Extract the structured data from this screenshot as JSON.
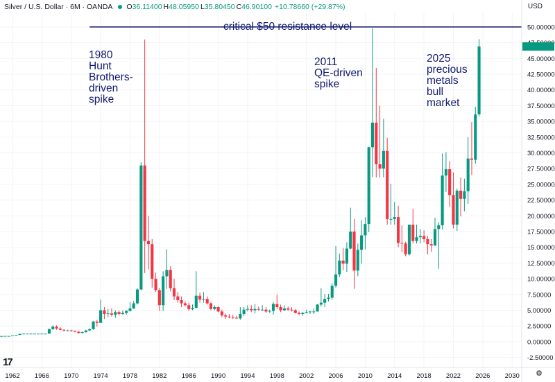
{
  "header": {
    "symbol": "Silver / U.S. Dollar · 6M · OANDA",
    "o_label": "O",
    "o_value": "36.11400",
    "h_label": "H",
    "h_value": "48.05950",
    "l_label": "L",
    "l_value": "35.80450",
    "c_label": "C",
    "c_value": "46.90100",
    "change": "+10.78660 (+29.87%)",
    "currency": "USD",
    "logo": "17"
  },
  "colors": {
    "up": "#089981",
    "down": "#f23645",
    "annotation": "#10186e"
  },
  "chart_data": {
    "type": "candlestick",
    "y_ticks": [
      "-2.50000",
      "0.00000",
      "2.50000",
      "5.00000",
      "7.50000",
      "10.00000",
      "12.50000",
      "15.00000",
      "17.50000",
      "20.00000",
      "22.50000",
      "25.00000",
      "27.50000",
      "30.00000",
      "32.50000",
      "35.00000",
      "37.50000",
      "40.00000",
      "42.50000",
      "45.00000",
      "47.50000",
      "50.00000"
    ],
    "x_ticks": [
      "1962",
      "1966",
      "1970",
      "1974",
      "1978",
      "1982",
      "1986",
      "1990",
      "1994",
      "1998",
      "2002",
      "2006",
      "2010",
      "2014",
      "2018",
      "2022",
      "2026",
      "2030"
    ],
    "ylim": [
      -3.2,
      52.3
    ],
    "xlim": [
      1960.3,
      2031.3
    ],
    "resistance": {
      "value": 50.0,
      "label": "critical $50 resistance level",
      "x_start": 1972.5
    },
    "annotations": [
      {
        "text": "1980\nHunt\nBrothers-\ndriven\nspike"
      },
      {
        "text": "2011\nQE-driven\nspike"
      },
      {
        "text": "2025\nprecious\nmetals\nbull\nmarket"
      }
    ],
    "candles": [
      {
        "t": 1960.5,
        "o": 0.91,
        "h": 0.91,
        "l": 0.91,
        "c": 0.91
      },
      {
        "t": 1961,
        "o": 0.91,
        "h": 0.92,
        "l": 0.91,
        "c": 0.92
      },
      {
        "t": 1961.5,
        "o": 0.92,
        "h": 0.92,
        "l": 0.92,
        "c": 0.92
      },
      {
        "t": 1962,
        "o": 0.92,
        "h": 1.0,
        "l": 0.92,
        "c": 1.0
      },
      {
        "t": 1962.5,
        "o": 1.0,
        "h": 1.08,
        "l": 1.0,
        "c": 1.08
      },
      {
        "t": 1963,
        "o": 1.08,
        "h": 1.25,
        "l": 1.07,
        "c": 1.25
      },
      {
        "t": 1963.5,
        "o": 1.25,
        "h": 1.29,
        "l": 1.25,
        "c": 1.29
      },
      {
        "t": 1964,
        "o": 1.29,
        "h": 1.29,
        "l": 1.29,
        "c": 1.29
      },
      {
        "t": 1964.5,
        "o": 1.29,
        "h": 1.29,
        "l": 1.29,
        "c": 1.29
      },
      {
        "t": 1965,
        "o": 1.29,
        "h": 1.29,
        "l": 1.29,
        "c": 1.29
      },
      {
        "t": 1965.5,
        "o": 1.29,
        "h": 1.29,
        "l": 1.29,
        "c": 1.29
      },
      {
        "t": 1966,
        "o": 1.29,
        "h": 1.29,
        "l": 1.29,
        "c": 1.29
      },
      {
        "t": 1966.5,
        "o": 1.29,
        "h": 1.29,
        "l": 1.29,
        "c": 1.29
      },
      {
        "t": 1967,
        "o": 1.29,
        "h": 2.1,
        "l": 1.29,
        "c": 2.0
      },
      {
        "t": 1967.5,
        "o": 2.0,
        "h": 2.6,
        "l": 1.9,
        "c": 2.4
      },
      {
        "t": 1968,
        "o": 2.4,
        "h": 2.6,
        "l": 1.9,
        "c": 2.1
      },
      {
        "t": 1968.5,
        "o": 2.1,
        "h": 2.3,
        "l": 1.8,
        "c": 1.9
      },
      {
        "t": 1969,
        "o": 1.9,
        "h": 2.0,
        "l": 1.6,
        "c": 1.8
      },
      {
        "t": 1969.5,
        "o": 1.8,
        "h": 1.9,
        "l": 1.7,
        "c": 1.8
      },
      {
        "t": 1970,
        "o": 1.8,
        "h": 1.9,
        "l": 1.6,
        "c": 1.7
      },
      {
        "t": 1970.5,
        "o": 1.7,
        "h": 1.8,
        "l": 1.5,
        "c": 1.6
      },
      {
        "t": 1971,
        "o": 1.6,
        "h": 1.7,
        "l": 1.3,
        "c": 1.4
      },
      {
        "t": 1971.5,
        "o": 1.4,
        "h": 1.6,
        "l": 1.3,
        "c": 1.55
      },
      {
        "t": 1972,
        "o": 1.55,
        "h": 1.9,
        "l": 1.4,
        "c": 1.8
      },
      {
        "t": 1972.5,
        "o": 1.8,
        "h": 2.1,
        "l": 1.7,
        "c": 2.0
      },
      {
        "t": 1973,
        "o": 2.0,
        "h": 3.3,
        "l": 1.9,
        "c": 3.2
      },
      {
        "t": 1973.5,
        "o": 3.2,
        "h": 3.5,
        "l": 2.4,
        "c": 3.0
      },
      {
        "t": 1974,
        "o": 3.0,
        "h": 6.7,
        "l": 3.0,
        "c": 5.0
      },
      {
        "t": 1974.5,
        "o": 5.0,
        "h": 5.5,
        "l": 3.6,
        "c": 4.4
      },
      {
        "t": 1975,
        "o": 4.4,
        "h": 5.2,
        "l": 3.9,
        "c": 4.5
      },
      {
        "t": 1975.5,
        "o": 4.5,
        "h": 5.3,
        "l": 4.0,
        "c": 4.3
      },
      {
        "t": 1976,
        "o": 4.3,
        "h": 5.0,
        "l": 3.8,
        "c": 4.7
      },
      {
        "t": 1976.5,
        "o": 4.7,
        "h": 5.0,
        "l": 4.2,
        "c": 4.4
      },
      {
        "t": 1977,
        "o": 4.4,
        "h": 5.0,
        "l": 4.3,
        "c": 4.6
      },
      {
        "t": 1977.5,
        "o": 4.6,
        "h": 5.0,
        "l": 4.3,
        "c": 4.9
      },
      {
        "t": 1978,
        "o": 4.9,
        "h": 6.3,
        "l": 4.8,
        "c": 5.3
      },
      {
        "t": 1978.5,
        "o": 5.3,
        "h": 6.5,
        "l": 5.2,
        "c": 6.1
      },
      {
        "t": 1979,
        "o": 6.1,
        "h": 8.5,
        "l": 5.9,
        "c": 8.3
      },
      {
        "t": 1979.5,
        "o": 8.3,
        "h": 28.5,
        "l": 8.2,
        "c": 28.0
      },
      {
        "t": 1980,
        "o": 28.0,
        "h": 48.0,
        "l": 10.9,
        "c": 16.0
      },
      {
        "t": 1980.5,
        "o": 16.0,
        "h": 20.0,
        "l": 11.5,
        "c": 15.5
      },
      {
        "t": 1981,
        "o": 15.5,
        "h": 16.3,
        "l": 8.6,
        "c": 10.0
      },
      {
        "t": 1981.5,
        "o": 10.0,
        "h": 11.0,
        "l": 7.9,
        "c": 8.2
      },
      {
        "t": 1982,
        "o": 8.2,
        "h": 8.5,
        "l": 4.9,
        "c": 5.8
      },
      {
        "t": 1982.5,
        "o": 5.8,
        "h": 11.2,
        "l": 4.9,
        "c": 10.4
      },
      {
        "t": 1983,
        "o": 10.4,
        "h": 14.7,
        "l": 8.4,
        "c": 11.4
      },
      {
        "t": 1983.5,
        "o": 11.4,
        "h": 12.0,
        "l": 8.0,
        "c": 8.5
      },
      {
        "t": 1984,
        "o": 8.5,
        "h": 10.0,
        "l": 6.6,
        "c": 7.2
      },
      {
        "t": 1984.5,
        "o": 7.2,
        "h": 7.9,
        "l": 6.2,
        "c": 6.6
      },
      {
        "t": 1985,
        "o": 6.6,
        "h": 7.2,
        "l": 5.5,
        "c": 6.1
      },
      {
        "t": 1985.5,
        "o": 6.1,
        "h": 6.4,
        "l": 5.6,
        "c": 5.8
      },
      {
        "t": 1986,
        "o": 5.8,
        "h": 6.2,
        "l": 4.9,
        "c": 5.2
      },
      {
        "t": 1986.5,
        "o": 5.2,
        "h": 5.9,
        "l": 5.0,
        "c": 5.4
      },
      {
        "t": 1987,
        "o": 5.4,
        "h": 11.2,
        "l": 5.3,
        "c": 7.3
      },
      {
        "t": 1987.5,
        "o": 7.3,
        "h": 7.8,
        "l": 6.2,
        "c": 6.7
      },
      {
        "t": 1988,
        "o": 6.7,
        "h": 7.9,
        "l": 6.2,
        "c": 6.8
      },
      {
        "t": 1988.5,
        "o": 6.8,
        "h": 7.2,
        "l": 5.9,
        "c": 6.1
      },
      {
        "t": 1989,
        "o": 6.1,
        "h": 6.3,
        "l": 5.0,
        "c": 5.2
      },
      {
        "t": 1989.5,
        "o": 5.2,
        "h": 5.8,
        "l": 5.0,
        "c": 5.5
      },
      {
        "t": 1990,
        "o": 5.5,
        "h": 5.6,
        "l": 4.7,
        "c": 4.8
      },
      {
        "t": 1990.5,
        "o": 4.8,
        "h": 5.1,
        "l": 3.9,
        "c": 4.2
      },
      {
        "t": 1991,
        "o": 4.2,
        "h": 4.5,
        "l": 3.6,
        "c": 4.0
      },
      {
        "t": 1991.5,
        "o": 4.0,
        "h": 4.4,
        "l": 3.7,
        "c": 3.9
      },
      {
        "t": 1992,
        "o": 3.9,
        "h": 4.3,
        "l": 3.6,
        "c": 3.8
      },
      {
        "t": 1992.5,
        "o": 3.8,
        "h": 4.1,
        "l": 3.6,
        "c": 3.7
      },
      {
        "t": 1993,
        "o": 3.7,
        "h": 5.5,
        "l": 3.5,
        "c": 4.4
      },
      {
        "t": 1993.5,
        "o": 4.4,
        "h": 5.5,
        "l": 4.1,
        "c": 5.1
      },
      {
        "t": 1994,
        "o": 5.1,
        "h": 5.8,
        "l": 4.8,
        "c": 5.2
      },
      {
        "t": 1994.5,
        "o": 5.2,
        "h": 5.8,
        "l": 4.7,
        "c": 5.0
      },
      {
        "t": 1995,
        "o": 5.0,
        "h": 6.0,
        "l": 4.5,
        "c": 5.2
      },
      {
        "t": 1995.5,
        "o": 5.2,
        "h": 5.6,
        "l": 4.9,
        "c": 5.1
      },
      {
        "t": 1996,
        "o": 5.1,
        "h": 5.8,
        "l": 4.9,
        "c": 5.1
      },
      {
        "t": 1996.5,
        "o": 5.1,
        "h": 5.5,
        "l": 4.6,
        "c": 4.8
      },
      {
        "t": 1997,
        "o": 4.8,
        "h": 5.1,
        "l": 4.6,
        "c": 4.9
      },
      {
        "t": 1997.5,
        "o": 4.9,
        "h": 6.3,
        "l": 4.3,
        "c": 6.0
      },
      {
        "t": 1998,
        "o": 6.0,
        "h": 7.5,
        "l": 5.2,
        "c": 5.5
      },
      {
        "t": 1998.5,
        "o": 5.5,
        "h": 5.9,
        "l": 4.7,
        "c": 5.0
      },
      {
        "t": 1999,
        "o": 5.0,
        "h": 5.8,
        "l": 4.9,
        "c": 5.3
      },
      {
        "t": 1999.5,
        "o": 5.3,
        "h": 5.6,
        "l": 4.9,
        "c": 5.1
      },
      {
        "t": 2000,
        "o": 5.1,
        "h": 5.5,
        "l": 4.8,
        "c": 5.0
      },
      {
        "t": 2000.5,
        "o": 5.0,
        "h": 5.2,
        "l": 4.5,
        "c": 4.6
      },
      {
        "t": 2001,
        "o": 4.6,
        "h": 4.8,
        "l": 4.2,
        "c": 4.4
      },
      {
        "t": 2001.5,
        "o": 4.4,
        "h": 4.7,
        "l": 4.1,
        "c": 4.6
      },
      {
        "t": 2002,
        "o": 4.6,
        "h": 5.1,
        "l": 4.5,
        "c": 4.7
      },
      {
        "t": 2002.5,
        "o": 4.7,
        "h": 4.9,
        "l": 4.4,
        "c": 4.8
      },
      {
        "t": 2003,
        "o": 4.8,
        "h": 5.3,
        "l": 4.4,
        "c": 4.8
      },
      {
        "t": 2003.5,
        "o": 4.8,
        "h": 6.0,
        "l": 4.8,
        "c": 5.9
      },
      {
        "t": 2004,
        "o": 5.9,
        "h": 8.5,
        "l": 5.6,
        "c": 6.2
      },
      {
        "t": 2004.5,
        "o": 6.2,
        "h": 7.6,
        "l": 5.5,
        "c": 6.8
      },
      {
        "t": 2005,
        "o": 6.8,
        "h": 7.6,
        "l": 6.4,
        "c": 7.0
      },
      {
        "t": 2005.5,
        "o": 7.0,
        "h": 9.3,
        "l": 6.7,
        "c": 8.9
      },
      {
        "t": 2006,
        "o": 8.9,
        "h": 15.2,
        "l": 8.6,
        "c": 10.7
      },
      {
        "t": 2006.5,
        "o": 10.7,
        "h": 14.0,
        "l": 10.3,
        "c": 12.9
      },
      {
        "t": 2007,
        "o": 12.9,
        "h": 14.9,
        "l": 11.4,
        "c": 12.4
      },
      {
        "t": 2007.5,
        "o": 12.4,
        "h": 15.8,
        "l": 11.1,
        "c": 14.8
      },
      {
        "t": 2008,
        "o": 14.8,
        "h": 21.3,
        "l": 14.7,
        "c": 17.5
      },
      {
        "t": 2008.5,
        "o": 17.5,
        "h": 19.5,
        "l": 8.4,
        "c": 11.3
      },
      {
        "t": 2009,
        "o": 11.3,
        "h": 15.6,
        "l": 10.4,
        "c": 14.6
      },
      {
        "t": 2009.5,
        "o": 14.6,
        "h": 19.3,
        "l": 12.4,
        "c": 16.9
      },
      {
        "t": 2010,
        "o": 16.9,
        "h": 19.8,
        "l": 14.7,
        "c": 18.7
      },
      {
        "t": 2010.5,
        "o": 18.7,
        "h": 31.0,
        "l": 17.4,
        "c": 30.9
      },
      {
        "t": 2011,
        "o": 30.9,
        "h": 49.8,
        "l": 26.2,
        "c": 34.8
      },
      {
        "t": 2011.5,
        "o": 34.8,
        "h": 43.5,
        "l": 26.1,
        "c": 28.2
      },
      {
        "t": 2012,
        "o": 28.2,
        "h": 37.5,
        "l": 26.1,
        "c": 27.5
      },
      {
        "t": 2012.5,
        "o": 27.5,
        "h": 35.4,
        "l": 26.1,
        "c": 30.3
      },
      {
        "t": 2013,
        "o": 30.3,
        "h": 32.4,
        "l": 18.6,
        "c": 19.5
      },
      {
        "t": 2013.5,
        "o": 19.5,
        "h": 25.1,
        "l": 18.6,
        "c": 19.5
      },
      {
        "t": 2014,
        "o": 19.5,
        "h": 22.2,
        "l": 18.6,
        "c": 19.8
      },
      {
        "t": 2014.5,
        "o": 19.8,
        "h": 21.6,
        "l": 15.0,
        "c": 15.7
      },
      {
        "t": 2015,
        "o": 15.7,
        "h": 18.5,
        "l": 14.2,
        "c": 15.6
      },
      {
        "t": 2015.5,
        "o": 15.6,
        "h": 15.9,
        "l": 13.6,
        "c": 13.9
      },
      {
        "t": 2016,
        "o": 13.9,
        "h": 18.6,
        "l": 13.7,
        "c": 18.6
      },
      {
        "t": 2016.5,
        "o": 18.6,
        "h": 21.1,
        "l": 15.6,
        "c": 16.0
      },
      {
        "t": 2017,
        "o": 16.0,
        "h": 18.6,
        "l": 15.6,
        "c": 16.6
      },
      {
        "t": 2017.5,
        "o": 16.6,
        "h": 17.9,
        "l": 15.6,
        "c": 16.8
      },
      {
        "t": 2018,
        "o": 16.8,
        "h": 17.7,
        "l": 15.8,
        "c": 16.3
      },
      {
        "t": 2018.5,
        "o": 16.3,
        "h": 16.8,
        "l": 13.9,
        "c": 15.5
      },
      {
        "t": 2019,
        "o": 15.5,
        "h": 16.3,
        "l": 14.3,
        "c": 15.3
      },
      {
        "t": 2019.5,
        "o": 15.3,
        "h": 19.7,
        "l": 15.2,
        "c": 17.9
      },
      {
        "t": 2020,
        "o": 17.9,
        "h": 19.0,
        "l": 11.6,
        "c": 18.5
      },
      {
        "t": 2020.5,
        "o": 18.5,
        "h": 29.9,
        "l": 17.8,
        "c": 26.4
      },
      {
        "t": 2021,
        "o": 26.4,
        "h": 30.1,
        "l": 23.8,
        "c": 27.4
      },
      {
        "t": 2021.5,
        "o": 27.4,
        "h": 28.7,
        "l": 21.4,
        "c": 23.3
      },
      {
        "t": 2022,
        "o": 23.3,
        "h": 26.9,
        "l": 18.0,
        "c": 18.6
      },
      {
        "t": 2022.5,
        "o": 18.6,
        "h": 24.3,
        "l": 17.6,
        "c": 24.0
      },
      {
        "t": 2023,
        "o": 24.0,
        "h": 26.1,
        "l": 19.9,
        "c": 22.7
      },
      {
        "t": 2023.5,
        "o": 22.7,
        "h": 25.9,
        "l": 20.7,
        "c": 23.9
      },
      {
        "t": 2024,
        "o": 23.9,
        "h": 32.5,
        "l": 21.9,
        "c": 29.1
      },
      {
        "t": 2024.5,
        "o": 29.1,
        "h": 34.9,
        "l": 26.5,
        "c": 28.9
      },
      {
        "t": 2025,
        "o": 28.9,
        "h": 37.3,
        "l": 28.3,
        "c": 36.1
      },
      {
        "t": 2025.5,
        "o": 36.114,
        "h": 48.0595,
        "l": 35.8045,
        "c": 46.901
      }
    ]
  }
}
